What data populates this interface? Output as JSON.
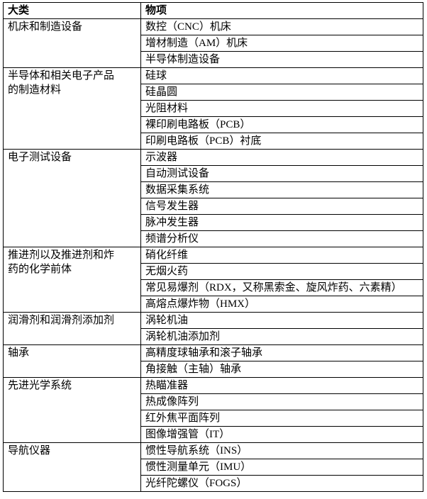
{
  "table": {
    "headers": [
      {
        "label": "大类"
      },
      {
        "label": "物项"
      }
    ],
    "groups": [
      {
        "category": "机床和制造设备",
        "items": [
          "数控（CNC）机床",
          "增材制造（AM）机床",
          "半导体制造设备"
        ]
      },
      {
        "category": "半导体和相关电子产品的制造材料",
        "items": [
          "硅球",
          "硅晶圆",
          "光阻材料",
          "裸印刷电路板（PCB）",
          "印刷电路板（PCB）衬底"
        ]
      },
      {
        "category": "电子测试设备",
        "items": [
          "示波器",
          "自动测试设备",
          "数据采集系统",
          "信号发生器",
          "脉冲发生器",
          "频谱分析仪"
        ]
      },
      {
        "category": "推进剂以及推进剂和炸药的化学前体",
        "items": [
          "硝化纤维",
          "无烟火药",
          "常见易爆剂（RDX，又称黑索金、旋风炸药、六素精）",
          "高熔点爆炸物（HMX）"
        ]
      },
      {
        "category": "润滑剂和润滑剂添加剂",
        "items": [
          "涡轮机油",
          "涡轮机油添加剂"
        ]
      },
      {
        "category": "轴承",
        "items": [
          "高精度球轴承和滚子轴承",
          "角接触（主轴）轴承"
        ]
      },
      {
        "category": "先进光学系统",
        "items": [
          "热瞄准器",
          "热成像阵列",
          "红外焦平面阵列",
          "图像增强管（IT）"
        ]
      },
      {
        "category": "导航仪器",
        "items": [
          "惯性导航系统（INS）",
          "惯性测量单元（IMU）",
          "光纤陀螺仪（FOGS）"
        ]
      }
    ]
  }
}
